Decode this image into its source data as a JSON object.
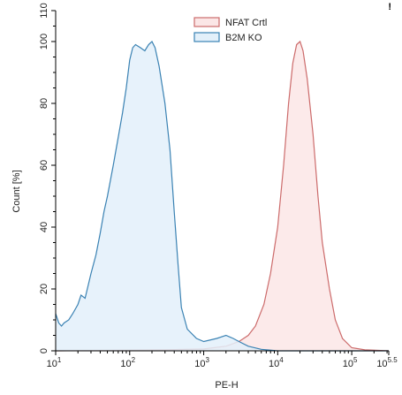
{
  "corner_mark": "!",
  "chart_data": {
    "type": "area",
    "title": "",
    "xlabel": "PE-H",
    "ylabel": "Count [%]",
    "x_scale": "log",
    "xlim": [
      10,
      316228
    ],
    "ylim": [
      0,
      110
    ],
    "x_ticks": [
      {
        "value": 10,
        "base": "10",
        "exp": "1"
      },
      {
        "value": 100,
        "base": "10",
        "exp": "2"
      },
      {
        "value": 1000,
        "base": "10",
        "exp": "3"
      },
      {
        "value": 10000,
        "base": "10",
        "exp": "4"
      },
      {
        "value": 100000,
        "base": "10",
        "exp": "5"
      },
      {
        "value": 316228,
        "base": "10",
        "exp": "5.5"
      }
    ],
    "y_ticks": [
      0,
      20,
      40,
      60,
      80,
      100,
      110
    ],
    "grid": false,
    "legend": "top-center",
    "series": [
      {
        "name": "NFAT Crtl",
        "stroke": "#cc6b6b",
        "fill": "#fbe6e6",
        "points": [
          [
            10,
            0
          ],
          [
            300,
            0.3
          ],
          [
            1000,
            0.6
          ],
          [
            2000,
            1.5
          ],
          [
            3000,
            3
          ],
          [
            4000,
            5
          ],
          [
            5000,
            8
          ],
          [
            6500,
            15
          ],
          [
            8000,
            25
          ],
          [
            10000,
            40
          ],
          [
            12000,
            60
          ],
          [
            14000,
            80
          ],
          [
            16000,
            93
          ],
          [
            18000,
            99
          ],
          [
            20000,
            100
          ],
          [
            22000,
            97
          ],
          [
            25000,
            88
          ],
          [
            30000,
            70
          ],
          [
            35000,
            50
          ],
          [
            40000,
            35
          ],
          [
            50000,
            20
          ],
          [
            60000,
            10
          ],
          [
            75000,
            4
          ],
          [
            100000,
            1
          ],
          [
            150000,
            0.3
          ],
          [
            316228,
            0
          ]
        ]
      },
      {
        "name": "B2M KO",
        "stroke": "#3a82b3",
        "fill": "#e3f0fa",
        "points": [
          [
            10,
            12
          ],
          [
            11,
            9
          ],
          [
            12,
            8
          ],
          [
            13,
            9
          ],
          [
            15,
            10
          ],
          [
            17,
            12
          ],
          [
            20,
            15
          ],
          [
            22,
            18
          ],
          [
            25,
            17
          ],
          [
            28,
            22
          ],
          [
            30,
            25
          ],
          [
            35,
            31
          ],
          [
            40,
            38
          ],
          [
            45,
            45
          ],
          [
            50,
            50
          ],
          [
            60,
            60
          ],
          [
            70,
            69
          ],
          [
            80,
            77
          ],
          [
            90,
            85
          ],
          [
            100,
            94
          ],
          [
            110,
            98
          ],
          [
            120,
            99
          ],
          [
            140,
            98
          ],
          [
            160,
            97
          ],
          [
            180,
            99
          ],
          [
            200,
            100
          ],
          [
            220,
            98
          ],
          [
            250,
            92
          ],
          [
            300,
            80
          ],
          [
            350,
            65
          ],
          [
            400,
            45
          ],
          [
            450,
            28
          ],
          [
            500,
            14
          ],
          [
            600,
            7
          ],
          [
            800,
            4
          ],
          [
            1000,
            3
          ],
          [
            1500,
            4
          ],
          [
            2000,
            5
          ],
          [
            2500,
            4
          ],
          [
            3000,
            3
          ],
          [
            4000,
            1.5
          ],
          [
            6000,
            0.5
          ],
          [
            10000,
            0
          ],
          [
            316228,
            0
          ]
        ]
      }
    ]
  }
}
